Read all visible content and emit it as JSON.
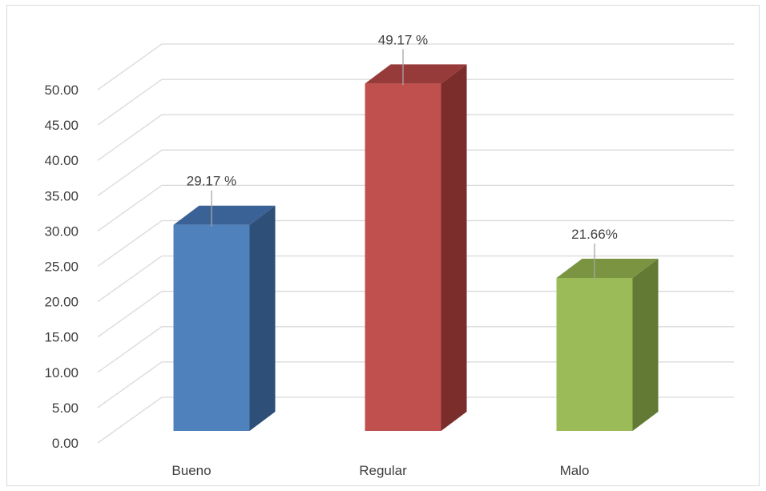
{
  "chart_data": {
    "type": "bar",
    "categories": [
      "Bueno",
      "Regular",
      "Malo"
    ],
    "values": [
      29.17,
      49.17,
      21.66
    ],
    "data_labels": [
      "29.17 %",
      "49.17 %",
      "21.66%"
    ],
    "y_ticks": [
      "0.00",
      "5.00",
      "10.00",
      "15.00",
      "20.00",
      "25.00",
      "30.00",
      "35.00",
      "40.00",
      "45.00",
      "50.00"
    ],
    "ylim": [
      0,
      50
    ],
    "grid": true,
    "legend": "none",
    "colors": [
      {
        "front": "#4f81bd",
        "side": "#2e4f78",
        "top": "#3a6296"
      },
      {
        "front": "#c0504d",
        "side": "#7b2d2c",
        "top": "#963b39"
      },
      {
        "front": "#9bbb59",
        "side": "#637a35",
        "top": "#7a9442"
      }
    ],
    "grid_color": "#d9d9d9"
  }
}
